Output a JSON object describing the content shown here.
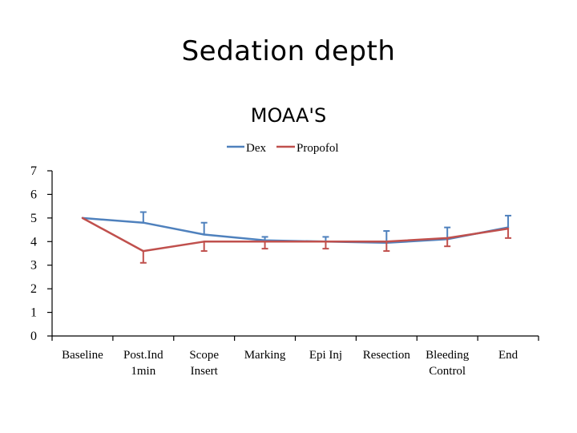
{
  "page": {
    "title": "Sedation depth"
  },
  "chart_data": {
    "type": "line",
    "title": "MOAA'S",
    "categories": [
      "Baseline",
      "Post.Ind 1min",
      "Scope Insert",
      "Marking",
      "Epi Inj",
      "Resection",
      "Bleeding Control",
      "End"
    ],
    "category_lines": [
      [
        "Baseline"
      ],
      [
        "Post.Ind",
        "1min"
      ],
      [
        "Scope",
        "Insert"
      ],
      [
        "Marking"
      ],
      [
        "Epi Inj"
      ],
      [
        "Resection"
      ],
      [
        "Bleeding",
        "Control"
      ],
      [
        "End"
      ]
    ],
    "ylim": [
      0,
      7
    ],
    "yticks": [
      "0",
      "1",
      "2",
      "3",
      "4",
      "5",
      "6",
      "7"
    ],
    "legend_position": "top-center",
    "series": [
      {
        "name": "Dex",
        "color": "#4f81bd",
        "values": [
          5.0,
          4.8,
          4.3,
          4.05,
          4.0,
          3.95,
          4.1,
          4.6
        ],
        "error_upper": [
          0,
          0.45,
          0.5,
          0.15,
          0.2,
          0.5,
          0.5,
          0.5
        ]
      },
      {
        "name": "Propofol",
        "color": "#c0504d",
        "values": [
          5.0,
          3.6,
          4.0,
          4.0,
          4.0,
          4.0,
          4.15,
          4.55
        ],
        "error_lower": [
          0,
          0.5,
          0.4,
          0.3,
          0.3,
          0.4,
          0.35,
          0.4
        ]
      }
    ]
  }
}
